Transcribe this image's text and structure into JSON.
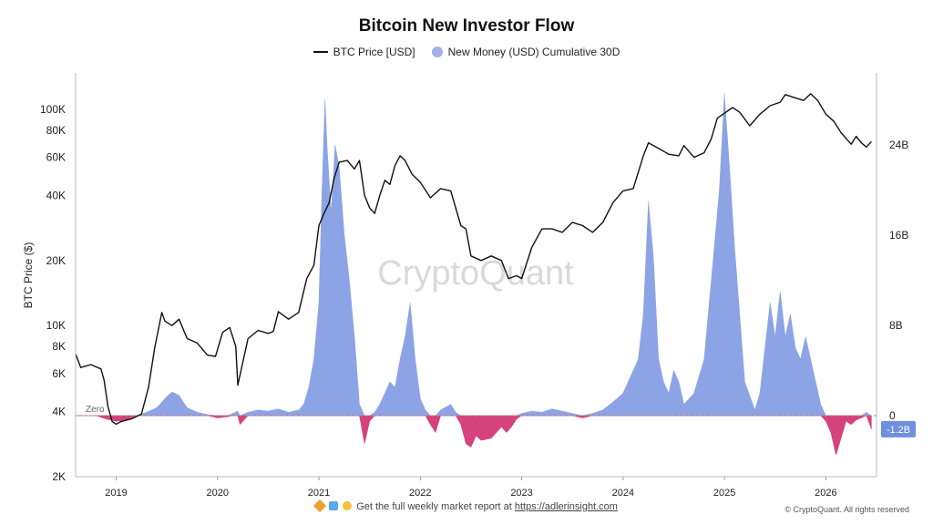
{
  "chart_data": {
    "type": "line",
    "title": "Bitcoin New Investor Flow",
    "ylabel": "BTC Price ($)",
    "watermark": "CryptoQuant",
    "zero_label": "Zero",
    "y_log_ticks": [
      {
        "v": 2000,
        "l": "2K"
      },
      {
        "v": 4000,
        "l": "4K"
      },
      {
        "v": 6000,
        "l": "6K"
      },
      {
        "v": 8000,
        "l": "8K"
      },
      {
        "v": 10000,
        "l": "10K"
      },
      {
        "v": 20000,
        "l": "20K"
      },
      {
        "v": 40000,
        "l": "40K"
      },
      {
        "v": 60000,
        "l": "60K"
      },
      {
        "v": 80000,
        "l": "80K"
      },
      {
        "v": 100000,
        "l": "100K"
      }
    ],
    "y2_ticks": [
      {
        "v": 0,
        "l": "0"
      },
      {
        "v": 8,
        "l": "8B"
      },
      {
        "v": 16,
        "l": "16B"
      },
      {
        "v": 24,
        "l": "24B"
      }
    ],
    "x_ticks": [
      "2019",
      "2020",
      "2021",
      "2022",
      "2023",
      "2024",
      "2025",
      "2026"
    ],
    "last_value_label": "-1.2B",
    "series": [
      {
        "name": "BTC Price [USD]",
        "color": "#111111",
        "x": [
          2018.6,
          2018.65,
          2018.75,
          2018.85,
          2018.88,
          2018.92,
          2018.96,
          2019.0,
          2019.05,
          2019.15,
          2019.25,
          2019.32,
          2019.38,
          2019.45,
          2019.48,
          2019.55,
          2019.62,
          2019.7,
          2019.8,
          2019.9,
          2019.98,
          2020.05,
          2020.12,
          2020.18,
          2020.2,
          2020.3,
          2020.4,
          2020.5,
          2020.55,
          2020.6,
          2020.7,
          2020.8,
          2020.88,
          2020.95,
          2021.0,
          2021.05,
          2021.1,
          2021.15,
          2021.2,
          2021.28,
          2021.35,
          2021.4,
          2021.45,
          2021.5,
          2021.55,
          2021.6,
          2021.65,
          2021.7,
          2021.75,
          2021.8,
          2021.85,
          2021.92,
          2022.0,
          2022.1,
          2022.2,
          2022.3,
          2022.4,
          2022.45,
          2022.5,
          2022.6,
          2022.7,
          2022.8,
          2022.87,
          2022.95,
          2023.0,
          2023.1,
          2023.2,
          2023.3,
          2023.4,
          2023.5,
          2023.6,
          2023.7,
          2023.8,
          2023.9,
          2024.0,
          2024.1,
          2024.2,
          2024.25,
          2024.35,
          2024.45,
          2024.55,
          2024.6,
          2024.7,
          2024.8,
          2024.87,
          2024.93,
          2025.0,
          2025.08,
          2025.15,
          2025.25,
          2025.35,
          2025.45,
          2025.55,
          2025.6,
          2025.7,
          2025.78,
          2025.85,
          2025.92,
          2026.0,
          2026.08,
          2026.15,
          2026.25,
          2026.3,
          2026.35,
          2026.4,
          2026.45
        ],
        "values": [
          7400,
          6400,
          6600,
          6300,
          5600,
          4200,
          3600,
          3500,
          3600,
          3700,
          3900,
          5200,
          7900,
          11500,
          10500,
          10000,
          10700,
          8700,
          8300,
          7300,
          7200,
          9300,
          9800,
          8000,
          5300,
          8700,
          9500,
          9200,
          9400,
          11600,
          10700,
          11500,
          16500,
          19000,
          29000,
          33000,
          37000,
          48000,
          57000,
          58000,
          53000,
          58000,
          40000,
          35000,
          33000,
          40000,
          47000,
          45000,
          55000,
          61000,
          58000,
          50000,
          46000,
          39000,
          43000,
          42000,
          29000,
          28000,
          21000,
          20000,
          21000,
          20000,
          16500,
          17000,
          16500,
          23000,
          28000,
          28000,
          27000,
          30000,
          29000,
          27000,
          30000,
          37000,
          42000,
          43000,
          61000,
          70000,
          66000,
          62000,
          61000,
          68000,
          60000,
          63000,
          73000,
          91000,
          96000,
          102000,
          97000,
          84000,
          95000,
          104000,
          108000,
          117000,
          113000,
          110000,
          118000,
          110000,
          95000,
          88000,
          78000,
          69000,
          75000,
          70000,
          67000,
          71000
        ]
      },
      {
        "name": "New Money (USD) Cumulative 30D",
        "color_pos": "#8ca4e6",
        "color_neg": "#d6427c",
        "unit": "B",
        "x": [
          2018.6,
          2018.8,
          2018.9,
          2019.0,
          2019.1,
          2019.2,
          2019.3,
          2019.4,
          2019.5,
          2019.55,
          2019.62,
          2019.7,
          2019.8,
          2019.9,
          2020.0,
          2020.1,
          2020.15,
          2020.2,
          2020.22,
          2020.3,
          2020.4,
          2020.5,
          2020.6,
          2020.7,
          2020.8,
          2020.85,
          2020.9,
          2020.95,
          2021.0,
          2021.03,
          2021.06,
          2021.08,
          2021.12,
          2021.16,
          2021.2,
          2021.25,
          2021.3,
          2021.35,
          2021.4,
          2021.45,
          2021.5,
          2021.55,
          2021.6,
          2021.65,
          2021.7,
          2021.75,
          2021.8,
          2021.85,
          2021.9,
          2021.95,
          2022.0,
          2022.05,
          2022.1,
          2022.15,
          2022.2,
          2022.3,
          2022.35,
          2022.4,
          2022.45,
          2022.5,
          2022.55,
          2022.6,
          2022.7,
          2022.8,
          2022.85,
          2022.9,
          2022.95,
          2023.0,
          2023.1,
          2023.2,
          2023.3,
          2023.4,
          2023.5,
          2023.6,
          2023.7,
          2023.8,
          2023.9,
          2024.0,
          2024.1,
          2024.15,
          2024.2,
          2024.25,
          2024.3,
          2024.35,
          2024.4,
          2024.45,
          2024.5,
          2024.55,
          2024.6,
          2024.7,
          2024.8,
          2024.85,
          2024.9,
          2024.95,
          2025.0,
          2025.05,
          2025.1,
          2025.15,
          2025.2,
          2025.3,
          2025.35,
          2025.4,
          2025.45,
          2025.5,
          2025.55,
          2025.6,
          2025.65,
          2025.7,
          2025.75,
          2025.8,
          2025.85,
          2025.9,
          2025.95,
          2026.0,
          2026.05,
          2026.1,
          2026.15,
          2026.2,
          2026.25,
          2026.3,
          2026.35,
          2026.4,
          2026.45
        ],
        "values": [
          0,
          0,
          -0.3,
          -0.5,
          -0.4,
          0,
          0.3,
          0.7,
          1.7,
          2.1,
          1.8,
          0.7,
          0.3,
          0.1,
          -0.2,
          -0.1,
          0.2,
          0.4,
          -0.8,
          0.3,
          0.5,
          0.4,
          0.6,
          0.3,
          0.5,
          1.0,
          2.5,
          5.0,
          10.0,
          20.0,
          28.0,
          24.0,
          18.0,
          24.0,
          22.0,
          16.0,
          12.0,
          7.0,
          1.0,
          -2.5,
          -0.5,
          0.3,
          1.0,
          2.0,
          3.0,
          2.5,
          5.0,
          7.0,
          10.0,
          5.0,
          1.5,
          0.5,
          -0.8,
          -1.5,
          0.5,
          1.0,
          0.3,
          -0.8,
          -2.5,
          -2.8,
          -1.8,
          -2.2,
          -2.0,
          -1.0,
          -1.5,
          -1.0,
          -0.3,
          0.2,
          0.4,
          0.3,
          0.6,
          0.4,
          0.2,
          -0.2,
          0.2,
          0.5,
          1.2,
          2.0,
          4.0,
          5.0,
          9.0,
          19.0,
          14.0,
          5.0,
          3.0,
          2.0,
          4.0,
          3.0,
          1.0,
          2.0,
          5.0,
          10.0,
          15.0,
          20.0,
          28.5,
          22.0,
          15.0,
          9.0,
          3.0,
          0.5,
          2.0,
          6.0,
          10.0,
          7.0,
          11.0,
          7.0,
          9.0,
          6.0,
          5.0,
          7.0,
          5.0,
          3.0,
          1.0,
          -0.5,
          -1.5,
          -3.5,
          -2.0,
          -0.5,
          -0.8,
          -0.4,
          -0.2,
          0.3,
          -1.2
        ]
      }
    ]
  },
  "footer": {
    "text": "Get the full weekly market report at",
    "link": "https://adlerinsight.com",
    "copyright": "© CryptoQuant. All rights reserved"
  },
  "legend": {
    "price_label": "BTC Price [USD]",
    "flow_label": "New Money (USD) Cumulative 30D"
  }
}
